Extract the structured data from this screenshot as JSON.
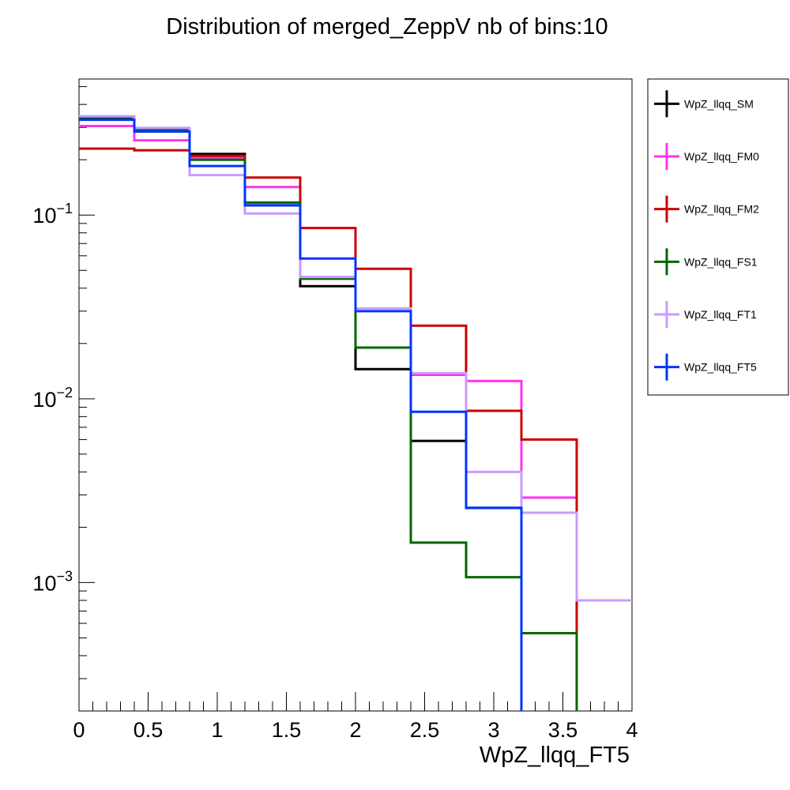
{
  "chart_data": {
    "type": "line",
    "title": "Distribution of merged_ZeppV nb of bins:10",
    "xlabel": "WpZ_llqq_FT5",
    "ylabel": "",
    "xlim": [
      0,
      4
    ],
    "ylim": [
      0.0002,
      0.55
    ],
    "yscale": "log",
    "x_ticks": [
      "0",
      "0.5",
      "1",
      "1.5",
      "2",
      "2.5",
      "3",
      "3.5",
      "4"
    ],
    "y_ticks": [
      {
        "base": "10",
        "exp": "−1",
        "value": 0.1
      },
      {
        "base": "10",
        "exp": "−2",
        "value": 0.01
      },
      {
        "base": "10",
        "exp": "−3",
        "value": 0.001
      }
    ],
    "bin_edges": [
      0,
      0.4,
      0.8,
      1.2,
      1.6,
      2.0,
      2.4,
      2.8,
      3.2,
      3.6,
      4.0
    ],
    "legend_position": "right",
    "series": [
      {
        "name": "WpZ_llqq_SM",
        "color": "#000000",
        "values": [
          0.335,
          0.285,
          0.215,
          0.113,
          0.041,
          0.0145,
          0.0059,
          0.00255,
          0,
          0
        ]
      },
      {
        "name": "WpZ_llqq_FM0",
        "color": "#ff33ee",
        "values": [
          0.305,
          0.255,
          0.205,
          0.142,
          0.046,
          0.031,
          0.0135,
          0.0125,
          0.0029,
          0
        ]
      },
      {
        "name": "WpZ_llqq_FM2",
        "color": "#cc0000",
        "values": [
          0.23,
          0.225,
          0.21,
          0.16,
          0.085,
          0.051,
          0.025,
          0.0086,
          0.006,
          0
        ]
      },
      {
        "name": "WpZ_llqq_FS1",
        "color": "#006600",
        "values": [
          0.34,
          0.29,
          0.2,
          0.117,
          0.045,
          0.019,
          0.00165,
          0.00107,
          0.00053,
          0
        ]
      },
      {
        "name": "WpZ_llqq_FT1",
        "color": "#cc99ff",
        "values": [
          0.345,
          0.298,
          0.165,
          0.102,
          0.046,
          0.031,
          0.0138,
          0.004,
          0.0024,
          0.0008
        ]
      },
      {
        "name": "WpZ_llqq_FT5",
        "color": "#0033ff",
        "values": [
          0.33,
          0.285,
          0.185,
          0.113,
          0.058,
          0.03,
          0.0085,
          0.00255,
          0,
          0
        ]
      }
    ]
  }
}
